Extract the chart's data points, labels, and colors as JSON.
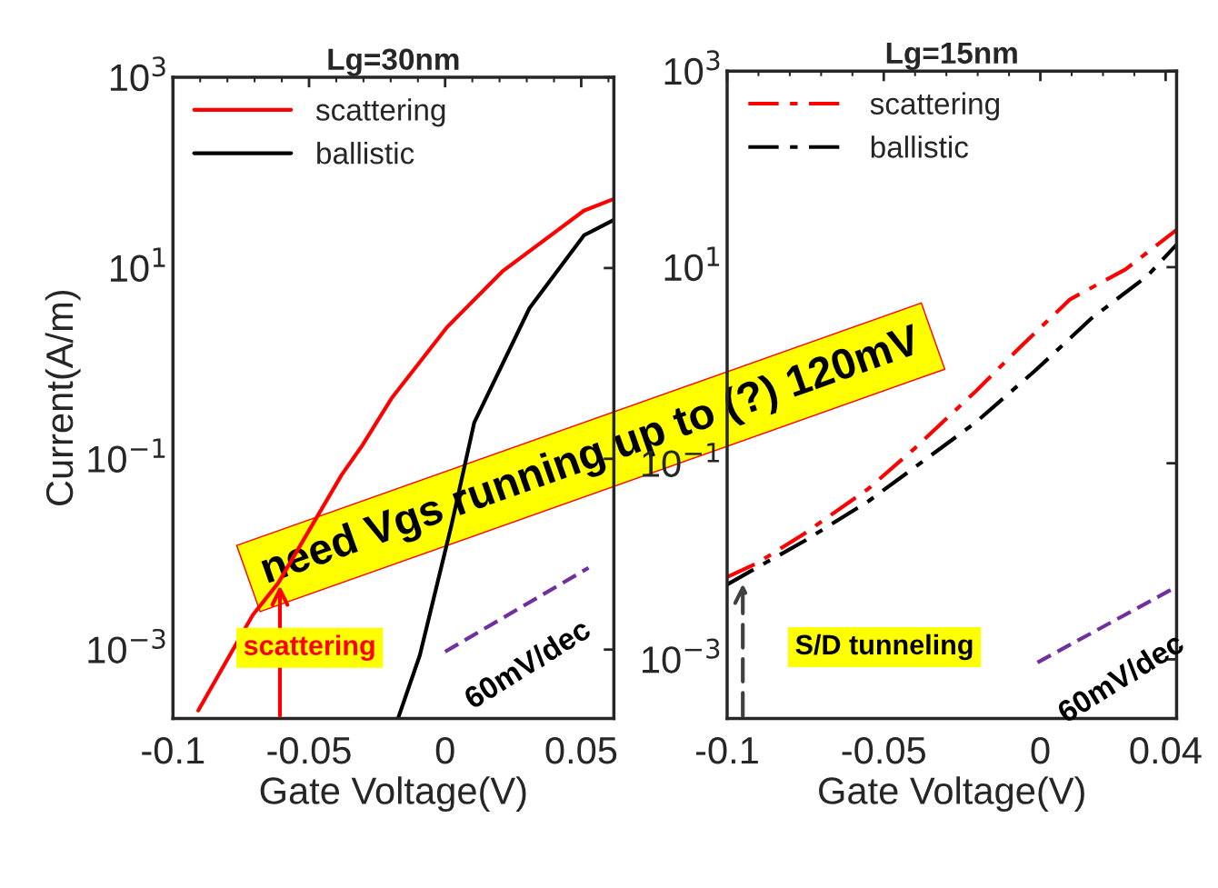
{
  "chart_data": [
    {
      "type": "line",
      "title": "Lg=30nm",
      "xlabel": "Gate Voltage(V)",
      "ylabel": "Current(A/m)",
      "log": "y",
      "xlim": [
        -0.1,
        0.062
      ],
      "xticks": [
        -0.1,
        -0.05,
        0,
        0.05
      ],
      "ylim": [
        0.00019,
        1000
      ],
      "yticks": [
        {
          "value": 0.001,
          "label": "10$^{−3}$"
        },
        {
          "value": 0.1,
          "label": "10$^{−1}$"
        },
        {
          "value": 10,
          "label": "10$^{1}$"
        },
        {
          "value": 1000,
          "label": "10$^{3}$"
        }
      ],
      "legend": "top left",
      "grid": false,
      "series": [
        {
          "name": "scattering",
          "color": "#ff0000",
          "line_style": "solid",
          "x": [
            -0.0907,
            -0.0707,
            -0.0613,
            -0.038,
            -0.0303,
            -0.0197,
            0.0007,
            0.021,
            0.051,
            0.062
          ],
          "values": [
            0.00023,
            0.0023,
            0.005,
            0.068,
            0.14,
            0.43,
            2.4,
            9.2,
            40,
            53
          ]
        },
        {
          "name": "ballistic",
          "color": "#000000",
          "line_style": "solid",
          "x": [
            -0.0173,
            -0.0093,
            0.0023,
            0.0107,
            0.031,
            0.051,
            0.062
          ],
          "values": [
            0.00019,
            0.00087,
            0.02,
            0.24,
            3.8,
            22,
            32
          ]
        },
        {
          "color": "#7030a0",
          "line_style": "dashed",
          "x": [
            0,
            0.0527
          ],
          "values": [
            0.00095,
            0.0072
          ]
        }
      ],
      "annotations": [
        {
          "text": "scattering",
          "x": -0.0607,
          "y": 0.005
        },
        {
          "text": "60mV/dec",
          "x": 0.026,
          "y": 0.0026
        },
        "need Vgs running up to (?) 120mV"
      ]
    },
    {
      "type": "line",
      "title": "Lg=15nm",
      "xlabel": "Gate Voltage(V)",
      "log": "y",
      "xlim": [
        -0.1,
        0.0435
      ],
      "xticks": [
        -0.1,
        -0.05,
        0,
        0.04
      ],
      "ylim": [
        0.00025,
        1000
      ],
      "yticks": [
        {
          "value": 0.001,
          "label": "10$^{−3}$"
        },
        {
          "value": 0.1,
          "label": "10$^{−1}$"
        },
        {
          "value": 10,
          "label": "10$^{1}$"
        },
        {
          "value": 1000,
          "label": "10$^{3}$"
        }
      ],
      "legend": "top left",
      "grid": false,
      "series": [
        {
          "name": "scattering",
          "color": "#ff0000",
          "line_style": "dashdot",
          "x": [
            -0.1,
            -0.0906,
            -0.0755,
            -0.0549,
            -0.0399,
            -0.0207,
            -0.007,
            0.0095,
            0.0272,
            0.0435
          ],
          "values": [
            0.0069,
            0.0095,
            0.019,
            0.055,
            0.144,
            0.54,
            1.47,
            4.7,
            9.5,
            24
          ]
        },
        {
          "name": "ballistic",
          "color": "#000000",
          "line_style": "dashdot",
          "x": [
            -0.1,
            -0.0892,
            -0.0755,
            -0.0549,
            -0.0399,
            -0.0207,
            -0.0015,
            0.0163,
            0.0341,
            0.0435
          ],
          "values": [
            0.0058,
            0.0091,
            0.016,
            0.041,
            0.092,
            0.26,
            0.89,
            3.0,
            8.1,
            17
          ]
        },
        {
          "color": "#7030a0",
          "line_style": "dashed",
          "x": [
            -0.0009,
            0.0435
          ],
          "values": [
            0.00093,
            0.0055
          ]
        }
      ],
      "annotations": [
        {
          "text": "S/D tunneling",
          "x": -0.095,
          "y": 0.0063
        },
        {
          "text": "60mV/dec",
          "x": 0.022,
          "y": 0.0023
        }
      ]
    }
  ]
}
